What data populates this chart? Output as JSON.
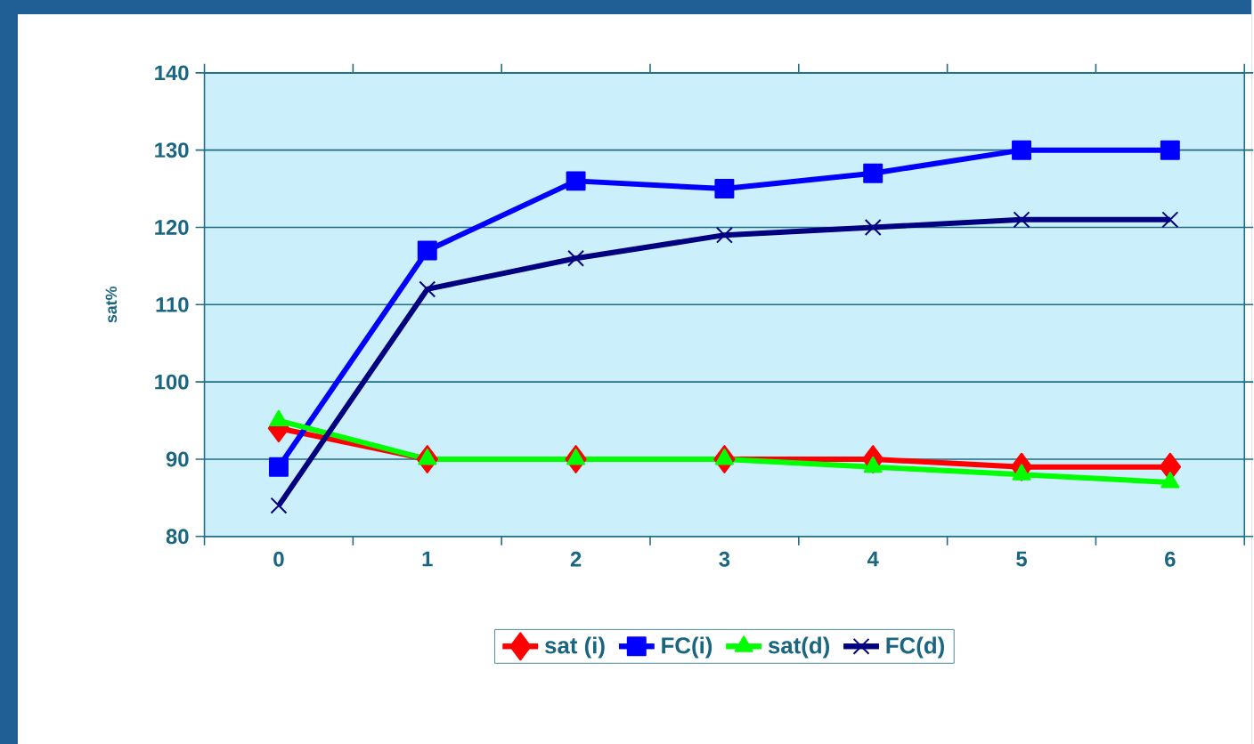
{
  "chart_data": {
    "type": "line",
    "ylabel": "sat%",
    "categories": [
      "0",
      "1",
      "2",
      "3",
      "4",
      "5",
      "6"
    ],
    "series": [
      {
        "name": "sat (i)",
        "color": "#ff0000",
        "marker": "diamond",
        "values": [
          94,
          90,
          90,
          90,
          90,
          89,
          89
        ]
      },
      {
        "name": "FC(i)",
        "color": "#0000ff",
        "marker": "square",
        "values": [
          89,
          117,
          126,
          125,
          127,
          130,
          130
        ]
      },
      {
        "name": "sat(d)",
        "color": "#00ff00",
        "marker": "triangle",
        "values": [
          95,
          90,
          90,
          90,
          89,
          88,
          87
        ]
      },
      {
        "name": "FC(d)",
        "color": "#000080",
        "marker": "cross",
        "values": [
          84,
          112,
          116,
          119,
          120,
          121,
          121
        ]
      }
    ],
    "ylim": [
      80,
      140
    ],
    "yticks": [
      80,
      90,
      100,
      110,
      120,
      130,
      140
    ],
    "grid": "y",
    "legend": "bottom"
  }
}
